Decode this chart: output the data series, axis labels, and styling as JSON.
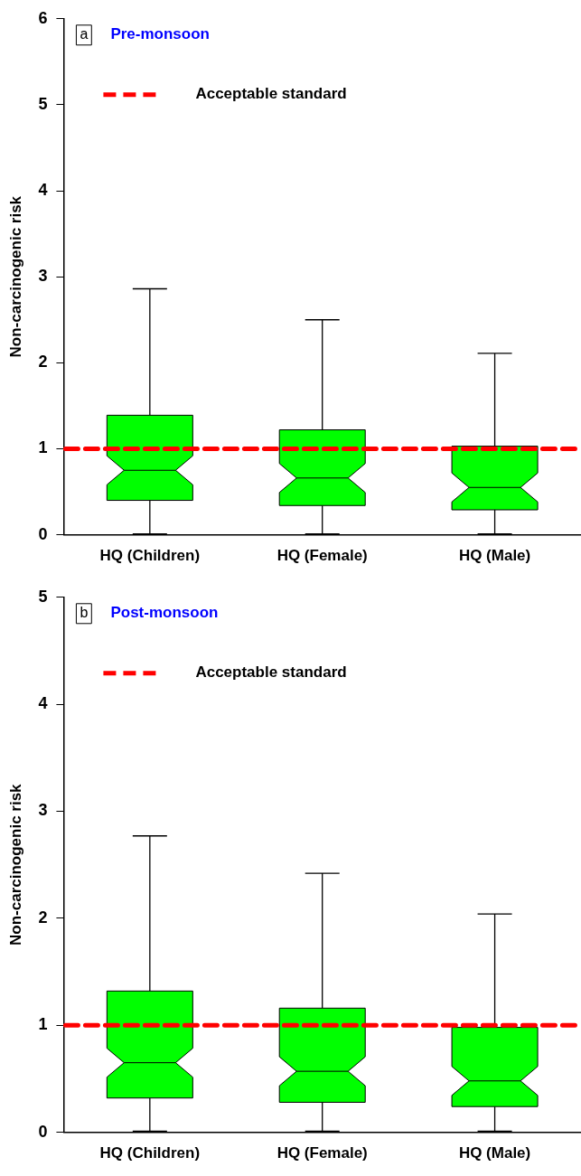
{
  "chart_data": [
    {
      "type": "box",
      "title": "Pre-monsoon",
      "annotations": [
        "a"
      ],
      "ylabel": "Non-carcinogenic risk",
      "categories": [
        "HQ (Children)",
        "HQ (Female)",
        "HQ (Male)"
      ],
      "color": "#00ff00",
      "boxes": [
        {
          "low": 0.01,
          "q1": 0.4,
          "median": 0.75,
          "q3": 1.39,
          "high": 2.86
        },
        {
          "low": 0.01,
          "q1": 0.34,
          "median": 0.66,
          "q3": 1.22,
          "high": 2.5
        },
        {
          "low": 0.01,
          "q1": 0.29,
          "median": 0.55,
          "q3": 1.03,
          "high": 2.11
        }
      ],
      "ylim": [
        0,
        6
      ],
      "yticks": [
        0,
        1,
        2,
        3,
        4,
        5,
        6
      ],
      "grid": false,
      "legend": "top left",
      "ref_lines": [
        {
          "axis": "y",
          "value": 1,
          "label": "Acceptable standard",
          "color": "#ff0000",
          "line_style": "dashed"
        }
      ]
    },
    {
      "type": "box",
      "title": "Post-monsoon",
      "annotations": [
        "b"
      ],
      "ylabel": "Non-carcinogenic risk",
      "categories": [
        "HQ (Children)",
        "HQ (Female)",
        "HQ (Male)"
      ],
      "color": "#00ff00",
      "boxes": [
        {
          "low": 0.01,
          "q1": 0.32,
          "median": 0.65,
          "q3": 1.32,
          "high": 2.77
        },
        {
          "low": 0.01,
          "q1": 0.28,
          "median": 0.57,
          "q3": 1.16,
          "high": 2.42
        },
        {
          "low": 0.01,
          "q1": 0.24,
          "median": 0.48,
          "q3": 0.98,
          "high": 2.04
        }
      ],
      "ylim": [
        0,
        5
      ],
      "yticks": [
        0,
        1,
        2,
        3,
        4,
        5
      ],
      "grid": false,
      "legend": "top left",
      "ref_lines": [
        {
          "axis": "y",
          "value": 1,
          "label": "Acceptable standard",
          "color": "#ff0000",
          "line_style": "dashed"
        }
      ]
    }
  ]
}
